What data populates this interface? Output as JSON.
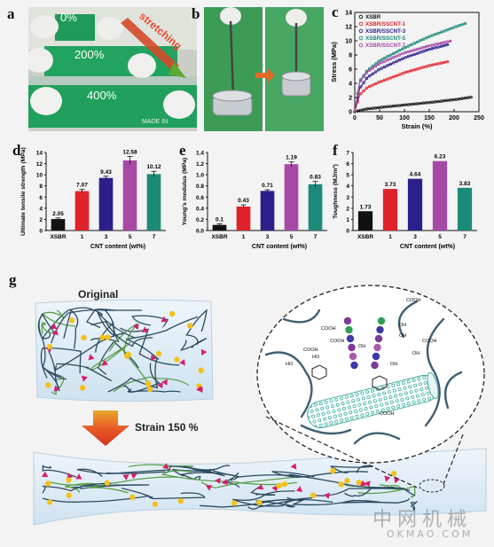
{
  "panels": {
    "a": {
      "letter": "a",
      "labels": [
        "0%",
        "200%",
        "400%"
      ],
      "arrow_text": "stretching",
      "ruler_text": "MADE IN"
    },
    "b": {
      "letter": "b"
    },
    "c": {
      "letter": "c"
    },
    "d": {
      "letter": "d"
    },
    "e": {
      "letter": "e"
    },
    "f": {
      "letter": "f"
    },
    "g": {
      "letter": "g",
      "original_label": "Original",
      "strain_label": "Strain 150 %",
      "chem_labels": [
        "COOH",
        "COOH",
        "COOH",
        "COOH",
        "COOH",
        "HO",
        "HO",
        "OH",
        "OH",
        "OH",
        "OH",
        "OH",
        "COOH"
      ]
    }
  },
  "watermark": {
    "cn": "中网机械",
    "en": "OKMAO.COM"
  },
  "colors": {
    "xsbr": "#111111",
    "cnt1": "#e0232a",
    "cnt3": "#2b1f8c",
    "cnt5": "#a74aa6",
    "cnt7": "#1c8a79"
  },
  "chart_data": [
    {
      "type": "line",
      "xlabel": "Strain (%)",
      "ylabel": "Stress (MPa)",
      "xlim": [
        0,
        250
      ],
      "ylim": [
        0,
        14
      ],
      "xticks": [
        "0",
        "50",
        "100",
        "150",
        "200",
        "250"
      ],
      "yticks": [
        "0",
        "2",
        "4",
        "6",
        "8",
        "10",
        "12",
        "14"
      ],
      "legend_position": "top-left",
      "series": [
        {
          "name": "XSBR",
          "color": "#111111",
          "x": [
            0,
            20,
            50,
            100,
            150,
            200,
            235
          ],
          "y": [
            0,
            0.35,
            0.6,
            0.95,
            1.3,
            1.7,
            2.05
          ]
        },
        {
          "name": "XSBR/SSCNT-1",
          "color": "#e0232a",
          "x": [
            0,
            10,
            25,
            50,
            100,
            150,
            190
          ],
          "y": [
            0,
            2.4,
            3.4,
            4.2,
            5.5,
            6.5,
            7.1
          ]
        },
        {
          "name": "XSBR/SSCNT-3",
          "color": "#2b1f8c",
          "x": [
            0,
            10,
            25,
            50,
            100,
            150,
            190
          ],
          "y": [
            0,
            3.3,
            4.8,
            6.0,
            7.6,
            8.8,
            9.5
          ]
        },
        {
          "name": "XSBR/SSCNT-5",
          "color": "#1c8a79",
          "x": [
            0,
            10,
            25,
            50,
            100,
            150,
            200,
            225
          ],
          "y": [
            0,
            4.3,
            5.8,
            7.2,
            9.0,
            10.6,
            11.9,
            12.5
          ]
        },
        {
          "name": "XSBR/SSCNT-7",
          "color": "#a74aa6",
          "x": [
            0,
            10,
            25,
            50,
            100,
            150,
            195
          ],
          "y": [
            0,
            4.2,
            5.6,
            6.8,
            8.3,
            9.3,
            10.0
          ]
        }
      ]
    },
    {
      "type": "bar",
      "xlabel": "CNT content (wt%)",
      "ylabel": "Ultimate tensile strength (MPa)",
      "categories": [
        "XSBR",
        "1",
        "3",
        "5",
        "7"
      ],
      "values": [
        2.05,
        7.07,
        9.43,
        12.58,
        10.12
      ],
      "value_labels": [
        "2.05",
        "7.07",
        "9.43",
        "12.58",
        "10.12"
      ],
      "errors": [
        0.2,
        0.3,
        0.3,
        0.7,
        0.5
      ],
      "ylim": [
        0,
        14
      ],
      "yticks": [
        "0",
        "2",
        "4",
        "6",
        "8",
        "10",
        "12",
        "14"
      ]
    },
    {
      "type": "bar",
      "xlabel": "CNT content (wt%)",
      "ylabel": "Young's modulus (MPa)",
      "categories": [
        "XSBR",
        "1",
        "3",
        "5",
        "7"
      ],
      "values": [
        0.1,
        0.43,
        0.71,
        1.19,
        0.83
      ],
      "value_labels": [
        "0.1",
        "0.43",
        "0.71",
        "1.19",
        "0.83"
      ],
      "errors": [
        0.02,
        0.03,
        0.02,
        0.04,
        0.05
      ],
      "ylim": [
        0,
        1.4
      ],
      "yticks": [
        "0.0",
        "0.2",
        "0.4",
        "0.6",
        "0.8",
        "1.0",
        "1.2",
        "1.4"
      ]
    },
    {
      "type": "bar",
      "xlabel": "CNT content (wt%)",
      "ylabel": "Toughness (MJ/m³)",
      "categories": [
        "XSBR",
        "1",
        "3",
        "5",
        "7"
      ],
      "values": [
        1.73,
        3.73,
        4.64,
        6.23,
        3.83
      ],
      "value_labels": [
        "1.73",
        "3.73",
        "4.64",
        "6.23",
        "3.83"
      ],
      "ylim": [
        0,
        7
      ],
      "yticks": [
        "0",
        "1",
        "2",
        "3",
        "4",
        "5",
        "6",
        "7"
      ]
    }
  ]
}
